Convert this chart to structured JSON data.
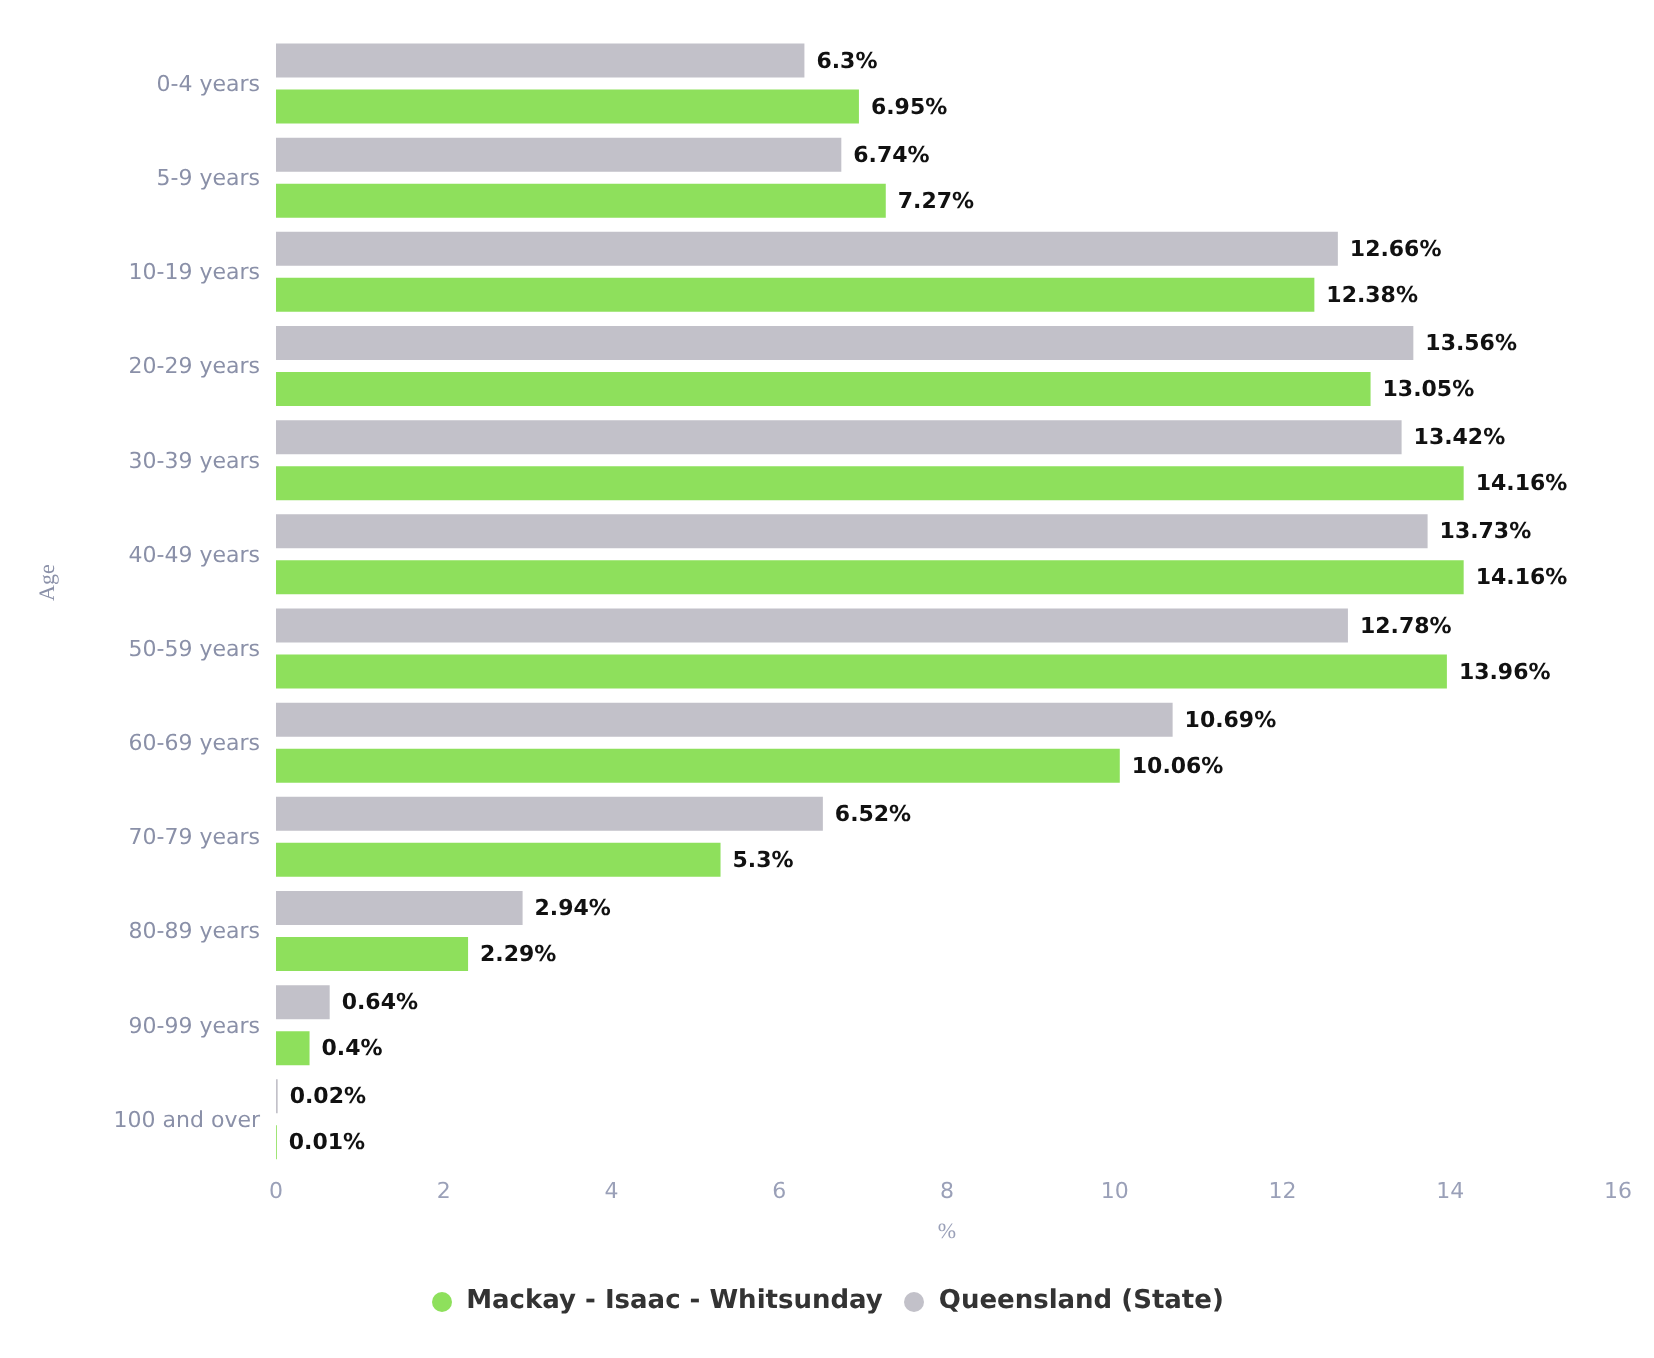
{
  "chart_data": {
    "type": "bar",
    "orientation": "horizontal",
    "xlabel": "%",
    "ylabel": "Age",
    "categories": [
      "0-4 years",
      "5-9 years",
      "10-19 years",
      "20-29 years",
      "30-39 years",
      "40-49 years",
      "50-59 years",
      "60-69 years",
      "70-79 years",
      "80-89 years",
      "90-99 years",
      "100 and over"
    ],
    "series": [
      {
        "name": "Mackay - Isaac - Whitsunday",
        "color": "#8ee05c",
        "values": [
          6.95,
          7.27,
          12.38,
          13.05,
          14.16,
          14.16,
          13.96,
          10.06,
          5.3,
          2.29,
          0.4,
          0.01
        ],
        "value_labels": [
          "6.95%",
          "7.27%",
          "12.38%",
          "13.05%",
          "14.16%",
          "14.16%",
          "13.96%",
          "10.06%",
          "5.3%",
          "2.29%",
          "0.4%",
          "0.01%"
        ]
      },
      {
        "name": "Queensland (State)",
        "color": "#c2c1c9",
        "values": [
          6.3,
          6.74,
          12.66,
          13.56,
          13.42,
          13.73,
          12.78,
          10.69,
          6.52,
          2.94,
          0.64,
          0.02
        ],
        "value_labels": [
          "6.3%",
          "6.74%",
          "12.66%",
          "13.56%",
          "13.42%",
          "13.73%",
          "12.78%",
          "10.69%",
          "6.52%",
          "2.94%",
          "0.64%",
          "0.02%"
        ]
      }
    ],
    "xlim": [
      0,
      16
    ],
    "xticks": [
      0,
      2,
      4,
      6,
      8,
      10,
      12,
      14,
      16
    ],
    "grid": false,
    "legend": "bottom"
  }
}
